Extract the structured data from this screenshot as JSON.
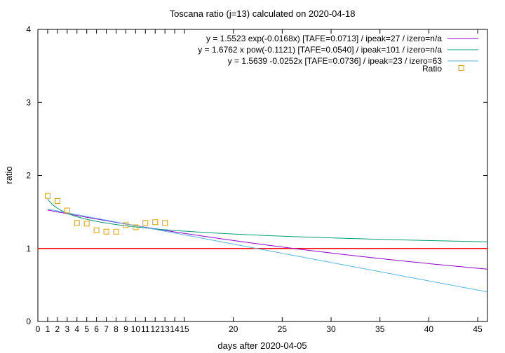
{
  "chart_data": {
    "type": "line",
    "title": "Toscana ratio (j=13) calculated on 2020-04-18",
    "xlabel": "days after 2020-04-05",
    "ylabel": "ratio",
    "xlim": [
      0,
      46
    ],
    "ylim": [
      0,
      4
    ],
    "x_ticks": [
      "0",
      "1",
      "2",
      "3",
      "4",
      "5",
      "6",
      "7",
      "8",
      "9",
      "10",
      "11",
      "12",
      "13",
      "14",
      "15",
      "20",
      "25",
      "30",
      "35",
      "40",
      "45"
    ],
    "y_ticks": [
      "0",
      "1",
      "2",
      "3",
      "4"
    ],
    "legend_position": "top-right",
    "reference_line": {
      "y": 1,
      "color": "#ff0000"
    },
    "series": [
      {
        "name": "y = 1.5523 exp(-0.0168x)  [TAFE=0.0713] / ipeak=27 / izero=n/a",
        "kind": "exp",
        "a": 1.5523,
        "b": -0.0168,
        "x_start": 1,
        "x_end": 46,
        "color": "#9400d3"
      },
      {
        "name": "y = 1.6762 x pow(-0.1121)  [TAFE=0.0540] / ipeak=101 / izero=n/a",
        "kind": "pow",
        "a": 1.6762,
        "b": -0.1121,
        "x_start": 1,
        "x_end": 46,
        "color": "#009e73"
      },
      {
        "name": "y = 1.5639 -0.0252x  [TAFE=0.0736] / ipeak=23 / izero=63",
        "kind": "linear",
        "a": 1.5639,
        "b": -0.0252,
        "x_start": 1,
        "x_end": 46,
        "color": "#56b4e9"
      },
      {
        "name": "Ratio",
        "kind": "points",
        "color": "#e69f00",
        "x": [
          1,
          2,
          3,
          4,
          5,
          6,
          7,
          8,
          9,
          10,
          11,
          12,
          13
        ],
        "y": [
          1.72,
          1.65,
          1.52,
          1.35,
          1.34,
          1.25,
          1.23,
          1.23,
          1.32,
          1.29,
          1.35,
          1.36,
          1.35
        ]
      }
    ]
  }
}
